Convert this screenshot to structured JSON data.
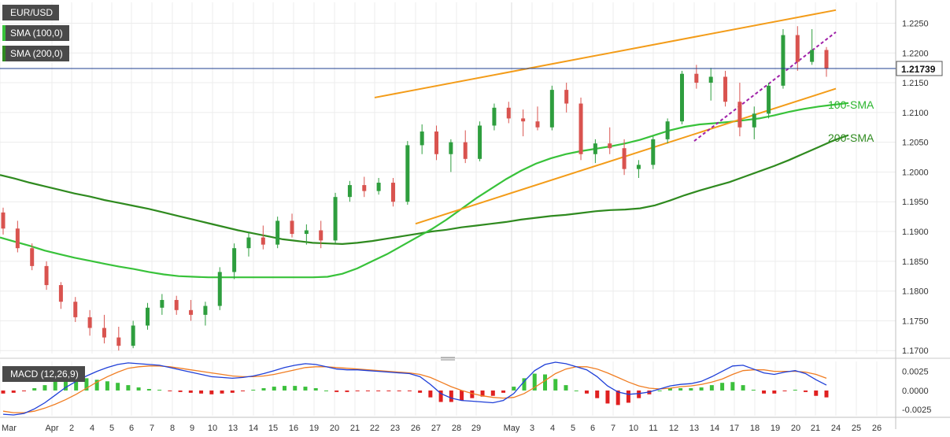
{
  "chart_data": {
    "type": "candlestick",
    "symbol": "EUR/USD",
    "price_label": "1.21739",
    "last_price": 1.21739,
    "indicators": [
      {
        "name": "SMA (100,0)",
        "label": "100-SMA",
        "color": "#38c23a"
      },
      {
        "name": "SMA (200,0)",
        "label": "200-SMA",
        "color": "#2f8a1f"
      }
    ],
    "colors": {
      "up": "#2e9e3e",
      "down": "#d9534f",
      "trend": "#f39c19",
      "dashed": "#a020a8",
      "sma100": "#38c23a",
      "sma200": "#2f8a1f",
      "price_line": "#1f3f8f",
      "macd": "#1f3fd8",
      "signal": "#f07d22"
    },
    "y_ticks": [
      "1.2250",
      "1.2200",
      "1.2150",
      "1.2100",
      "1.2050",
      "1.2000",
      "1.1950",
      "1.1900",
      "1.1850",
      "1.1800",
      "1.1750",
      "1.1700"
    ],
    "ylim": [
      1.1695,
      1.2285
    ],
    "x_ticks": [
      "Mar",
      "Apr",
      "2",
      "4",
      "5",
      "6",
      "7",
      "8",
      "9",
      "10",
      "13",
      "14",
      "15",
      "16",
      "19",
      "20",
      "21",
      "22",
      "23",
      "26",
      "27",
      "28",
      "29",
      "May",
      "3",
      "4",
      "5",
      "6",
      "7",
      "10",
      "11",
      "12",
      "13",
      "14",
      "17",
      "18",
      "19",
      "20",
      "21",
      "24",
      "25",
      "26"
    ],
    "sma100": [
      [
        1.189,
        1.1883,
        1.1876,
        1.1868,
        1.1862,
        1.1856,
        1.1851,
        1.1846,
        1.1841,
        1.1837,
        1.1832,
        1.1828,
        1.1825,
        1.1824,
        1.1823,
        1.1823,
        1.1823,
        1.1823,
        1.1823,
        1.1823,
        1.1823,
        1.1823,
        1.1824,
        1.1829,
        1.1838,
        1.185,
        1.1862,
        1.1876,
        1.189,
        1.1904,
        1.192,
        1.1938,
        1.1956,
        1.1972,
        1.1988,
        1.2002,
        1.2014,
        1.2023,
        1.203,
        1.2035,
        1.2039,
        1.2043,
        1.2048,
        1.2054,
        1.2062,
        1.207,
        1.2076,
        1.208,
        1.2082,
        1.2084,
        1.2087,
        1.209,
        1.2095,
        1.2101,
        1.2106,
        1.211,
        1.2113,
        1.2116
      ]
    ],
    "sma200": [
      [
        1.1995,
        1.1989,
        1.1982,
        1.1976,
        1.197,
        1.1964,
        1.1959,
        1.1953,
        1.1948,
        1.1943,
        1.1938,
        1.1932,
        1.1926,
        1.192,
        1.1914,
        1.1908,
        1.1902,
        1.1897,
        1.1892,
        1.1887,
        1.1884,
        1.1881,
        1.188,
        1.1879,
        1.1881,
        1.1884,
        1.1888,
        1.1892,
        1.1896,
        1.19,
        1.1903,
        1.1907,
        1.191,
        1.1913,
        1.1916,
        1.192,
        1.1923,
        1.1926,
        1.1928,
        1.1931,
        1.1934,
        1.1936,
        1.1937,
        1.1939,
        1.1944,
        1.1952,
        1.1961,
        1.1969,
        1.1976,
        1.1983,
        1.1992,
        1.2001,
        1.201,
        1.202,
        1.2031,
        1.2042,
        1.2053,
        1.2062
      ]
    ],
    "trendlines": [
      {
        "from": [
          "Apr 22",
          1.2125
        ],
        "to": [
          "May 24",
          1.2272
        ]
      },
      {
        "from": [
          "Apr 26",
          1.1913
        ],
        "to": [
          "May 24",
          1.214
        ]
      },
      {
        "from": [
          "May 13",
          1.2052
        ],
        "to": [
          "May 24",
          1.2235
        ],
        "style": "dashed"
      }
    ],
    "ohlc": [
      [
        1.1932,
        1.194,
        1.1895,
        1.1905
      ],
      [
        1.1905,
        1.1918,
        1.1865,
        1.1872
      ],
      [
        1.1872,
        1.188,
        1.1835,
        1.1842
      ],
      [
        1.1842,
        1.185,
        1.1802,
        1.181
      ],
      [
        1.181,
        1.1815,
        1.177,
        1.1782
      ],
      [
        1.1782,
        1.179,
        1.1748,
        1.1756
      ],
      [
        1.1756,
        1.1768,
        1.1725,
        1.1738
      ],
      [
        1.1738,
        1.176,
        1.1712,
        1.1722
      ],
      [
        1.1722,
        1.174,
        1.17,
        1.1708
      ],
      [
        1.1708,
        1.175,
        1.1704,
        1.1742
      ],
      [
        1.1742,
        1.178,
        1.1735,
        1.1772
      ],
      [
        1.1772,
        1.1795,
        1.176,
        1.1785
      ],
      [
        1.1785,
        1.1792,
        1.176,
        1.1768
      ],
      [
        1.1768,
        1.1785,
        1.175,
        1.176
      ],
      [
        1.176,
        1.1782,
        1.1742,
        1.1775
      ],
      [
        1.1775,
        1.184,
        1.1768,
        1.1832
      ],
      [
        1.1832,
        1.188,
        1.182,
        1.1872
      ],
      [
        1.1872,
        1.19,
        1.1858,
        1.189
      ],
      [
        1.189,
        1.191,
        1.187,
        1.1878
      ],
      [
        1.1878,
        1.1925,
        1.1872,
        1.1918
      ],
      [
        1.1918,
        1.193,
        1.189,
        1.1896
      ],
      [
        1.1896,
        1.1912,
        1.1878,
        1.1902
      ],
      [
        1.1902,
        1.1918,
        1.1872,
        1.1885
      ],
      [
        1.1885,
        1.1965,
        1.188,
        1.1958
      ],
      [
        1.1958,
        1.1985,
        1.195,
        1.1978
      ],
      [
        1.1978,
        1.1992,
        1.1958,
        1.1968
      ],
      [
        1.1968,
        1.199,
        1.1962,
        1.1982
      ],
      [
        1.1982,
        1.199,
        1.1942,
        1.195
      ],
      [
        1.195,
        1.2052,
        1.1945,
        1.2045
      ],
      [
        1.2045,
        1.208,
        1.203,
        1.2068
      ],
      [
        1.2068,
        1.2078,
        1.202,
        1.203
      ],
      [
        1.203,
        1.2055,
        1.2,
        1.205
      ],
      [
        1.205,
        1.207,
        1.2015,
        1.2022
      ],
      [
        1.2022,
        1.2085,
        1.2018,
        1.2078
      ],
      [
        1.2078,
        1.2115,
        1.207,
        1.2108
      ],
      [
        1.2108,
        1.2118,
        1.2082,
        1.209
      ],
      [
        1.209,
        1.2105,
        1.206,
        1.2085
      ],
      [
        1.2085,
        1.211,
        1.207,
        1.2075
      ],
      [
        1.2075,
        1.2145,
        1.207,
        1.2138
      ],
      [
        1.2138,
        1.215,
        1.21,
        1.2115
      ],
      [
        1.2115,
        1.2125,
        1.202,
        1.203
      ],
      [
        1.203,
        1.2055,
        1.2015,
        1.2048
      ],
      [
        1.2048,
        1.2075,
        1.203,
        1.204
      ],
      [
        1.204,
        1.2055,
        1.1995,
        1.2005
      ],
      [
        1.2005,
        1.202,
        1.199,
        1.2012
      ],
      [
        1.2012,
        1.206,
        1.2005,
        1.2055
      ],
      [
        1.2055,
        1.209,
        1.2048,
        1.2085
      ],
      [
        1.2085,
        1.217,
        1.208,
        1.2165
      ],
      [
        1.2165,
        1.218,
        1.214,
        1.215
      ],
      [
        1.215,
        1.2175,
        1.212,
        1.216
      ],
      [
        1.216,
        1.217,
        1.211,
        1.2118
      ],
      [
        1.2118,
        1.215,
        1.206,
        1.2075
      ],
      [
        1.2075,
        1.211,
        1.2055,
        1.2098
      ],
      [
        1.2098,
        1.215,
        1.209,
        1.2145
      ],
      [
        1.2145,
        1.224,
        1.214,
        1.223
      ],
      [
        1.223,
        1.2245,
        1.217,
        1.2185
      ],
      [
        1.2185,
        1.224,
        1.218,
        1.2205
      ],
      [
        1.2205,
        1.221,
        1.216,
        1.2174
      ]
    ],
    "macd": {
      "label": "MACD (12,26,9)",
      "y_ticks": [
        "0.0025",
        "0.0000",
        "-0.0025"
      ],
      "ylim": [
        -0.0033,
        0.0038
      ],
      "macd_line": [
        -0.0031,
        -0.0032,
        -0.003,
        -0.0024,
        -0.0016,
        -0.0006,
        0.0004,
        0.0012,
        0.0019,
        0.0025,
        0.003,
        0.0034,
        0.0036,
        0.0035,
        0.0034,
        0.0033,
        0.003,
        0.0027,
        0.0024,
        0.0021,
        0.0018,
        0.0017,
        0.0016,
        0.0017,
        0.0019,
        0.0022,
        0.0026,
        0.003,
        0.0033,
        0.0035,
        0.0034,
        0.0031,
        0.0028,
        0.0027,
        0.0027,
        0.0026,
        0.0025,
        0.0024,
        0.0023,
        0.0022,
        0.0018,
        0.0008,
        -0.0004,
        -0.001,
        -0.0013,
        -0.0014,
        -0.0015,
        -0.0016,
        -0.0013,
        -0.0004,
        0.0012,
        0.0026,
        0.0034,
        0.0037,
        0.0035,
        0.0031,
        0.0027,
        0.0018,
        0.0006,
        -0.0002,
        -0.0005,
        -0.0004,
        -0.0002,
        0.0002,
        0.0006,
        0.0008,
        0.0009,
        0.0012,
        0.0018,
        0.0025,
        0.0032,
        0.0033,
        0.0028,
        0.0023,
        0.0021,
        0.0024,
        0.0026,
        0.0022,
        0.0014,
        0.0007
      ],
      "signal_line": [
        -0.0027,
        -0.0029,
        -0.0029,
        -0.0027,
        -0.0023,
        -0.0018,
        -0.0012,
        -0.0005,
        0.0003,
        0.0011,
        0.0018,
        0.0024,
        0.0029,
        0.0031,
        0.0032,
        0.0032,
        0.0031,
        0.0029,
        0.0027,
        0.0025,
        0.0023,
        0.0021,
        0.0019,
        0.0018,
        0.0018,
        0.0019,
        0.0021,
        0.0024,
        0.0027,
        0.003,
        0.0031,
        0.0031,
        0.003,
        0.0029,
        0.0028,
        0.0027,
        0.0026,
        0.0025,
        0.0024,
        0.0023,
        0.0021,
        0.0017,
        0.0011,
        0.0005,
        0.0,
        -0.0004,
        -0.0007,
        -0.0009,
        -0.001,
        -0.0009,
        -0.0004,
        0.0004,
        0.0013,
        0.0022,
        0.0028,
        0.0031,
        0.0031,
        0.0028,
        0.0023,
        0.0017,
        0.0011,
        0.0006,
        0.0003,
        0.0002,
        0.0003,
        0.0005,
        0.0006,
        0.0008,
        0.0011,
        0.0015,
        0.0021,
        0.0026,
        0.0027,
        0.0027,
        0.0025,
        0.0025,
        0.0025,
        0.0024,
        0.0021,
        0.0016
      ]
    }
  }
}
